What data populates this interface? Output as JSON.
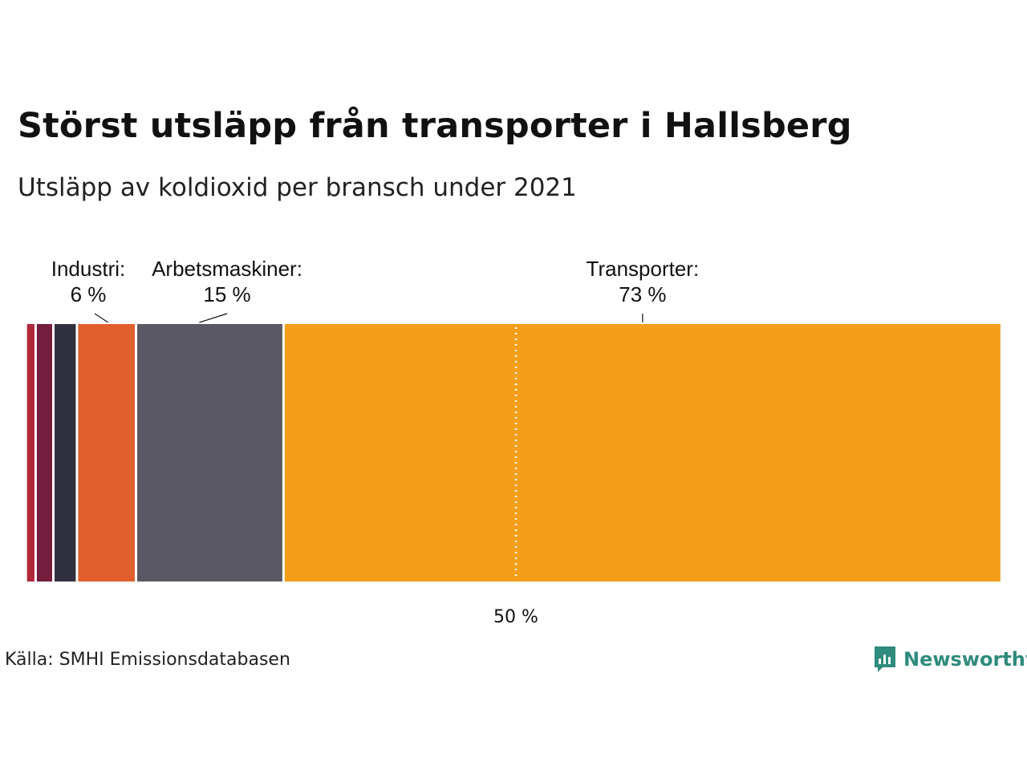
{
  "title": "Störst utsläpp från transporter i Hallsberg",
  "subtitle": "Utsläpp av koldioxid per bransch under 2021",
  "source": "Källa: SMHI Emissionsdatabasen",
  "brand": {
    "name": "Newsworthy",
    "icon": "newsworthy-logo-icon",
    "color": "#2e8b7d"
  },
  "chart_data": {
    "type": "bar",
    "orientation": "horizontal-stacked-100",
    "unit": "%",
    "segments": [
      {
        "name": "",
        "value": 0.3,
        "color": "#ffffff"
      },
      {
        "name": "",
        "value": 1.0,
        "color": "#b0283a"
      },
      {
        "name": "",
        "value": 1.8,
        "color": "#741d3c"
      },
      {
        "name": "",
        "value": 2.4,
        "color": "#30303f"
      },
      {
        "name": "Industri:",
        "value_label": "6 %",
        "value": 6,
        "color": "#e05f2d"
      },
      {
        "name": "Arbetsmaskiner:",
        "value_label": "15 %",
        "value": 15,
        "color": "#5a5864"
      },
      {
        "name": "Transporter:",
        "value_label": "73 %",
        "value": 73,
        "color": "#f59e1a"
      }
    ],
    "reference_line": {
      "value": 50,
      "label": "50 %",
      "style": "dotted",
      "color": "#ffffff"
    },
    "xlim": [
      0,
      100
    ]
  }
}
